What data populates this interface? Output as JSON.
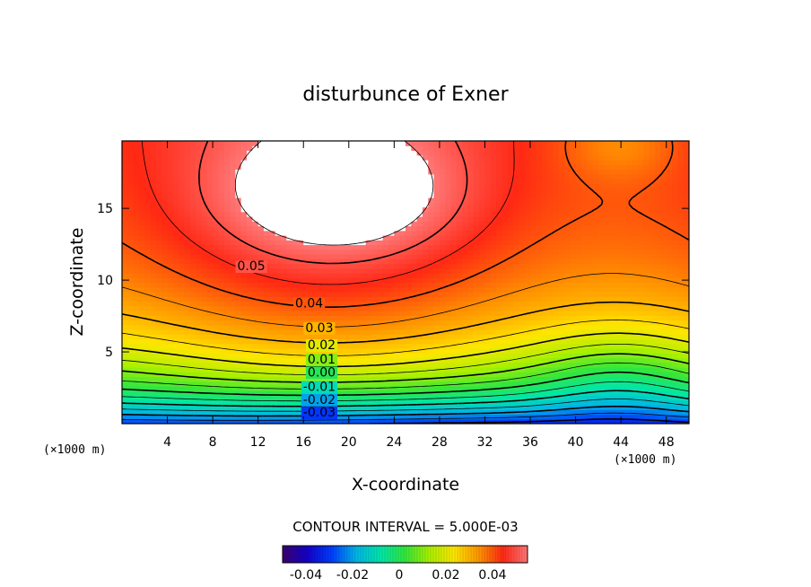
{
  "chart_data": {
    "type": "contour",
    "title": "disturbunce of Exner",
    "xlabel": "X-coordinate",
    "ylabel": "Z-coordinate",
    "x_unit": "(×1000 m)",
    "y_unit": "(×1000 m)",
    "xlim": [
      0,
      50
    ],
    "ylim": [
      0,
      19.7
    ],
    "x_ticks": [
      4,
      8,
      12,
      16,
      20,
      24,
      28,
      32,
      36,
      40,
      44,
      48
    ],
    "y_ticks": [
      5,
      10,
      15
    ],
    "contour_interval_text": "CONTOUR INTERVAL = 5.000E-03",
    "contour_interval": 0.005,
    "value_range": [
      -0.05,
      0.055
    ],
    "contour_labels": [
      {
        "text": "0.05",
        "x": 11.4,
        "z": 11.0
      },
      {
        "text": "0.04",
        "x": 16.5,
        "z": 8.4
      },
      {
        "text": "0.03",
        "x": 17.4,
        "z": 6.7
      },
      {
        "text": "0.02",
        "x": 17.6,
        "z": 5.5
      },
      {
        "text": "0.01",
        "x": 17.6,
        "z": 4.5
      },
      {
        "text": "0.00",
        "x": 17.6,
        "z": 3.6
      },
      {
        "text": "-0.01",
        "x": 17.4,
        "z": 2.6
      },
      {
        "text": "-0.02",
        "x": 17.4,
        "z": 1.7
      },
      {
        "text": "-0.03",
        "x": 17.4,
        "z": 0.8
      }
    ],
    "colorbar": {
      "ticks": [
        "-0.04",
        "-0.02",
        "0",
        "0.02",
        "0.04"
      ],
      "tick_values": [
        -0.04,
        -0.02,
        0,
        0.02,
        0.04
      ],
      "range": [
        -0.05,
        0.055
      ]
    }
  }
}
